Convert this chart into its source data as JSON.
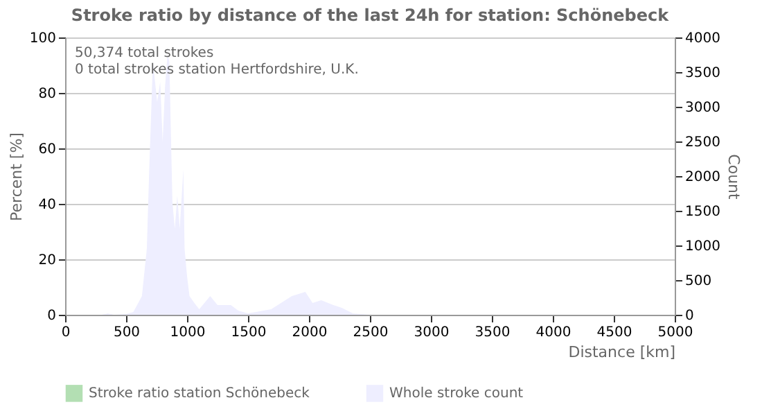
{
  "chart_data": {
    "type": "area",
    "title": "Stroke ratio by distance of the last 24h for station: Schönebeck",
    "xlabel": "Distance    [km]",
    "ylabel": "Percent    [%]",
    "y2label": "Count",
    "annotations": [
      "50,374 total strokes",
      "0 total strokes station Hertfordshire, U.K."
    ],
    "xlim": [
      0,
      5000
    ],
    "xticks": [
      0,
      500,
      1000,
      1500,
      2000,
      2500,
      3000,
      3500,
      4000,
      4500,
      5000
    ],
    "ylim": [
      0,
      100
    ],
    "yticks": [
      0,
      20,
      40,
      60,
      80,
      100
    ],
    "y2lim": [
      0,
      4000
    ],
    "y2ticks": [
      0,
      500,
      1000,
      1500,
      2000,
      2500,
      3000,
      3500,
      4000
    ],
    "grid": "y",
    "legend": "bottom",
    "series": [
      {
        "name": "Stroke ratio station Schönebeck",
        "color": "#b3dfb3",
        "axis": "y"
      },
      {
        "name": "Whole stroke count",
        "color": "#eeeeff",
        "axis": "y2",
        "x": [
          0,
          300,
          350,
          400,
          500,
          560,
          630,
          670,
          690,
          720,
          755,
          780,
          800,
          820,
          840,
          855,
          880,
          900,
          920,
          940,
          970,
          980,
          1000,
          1020,
          1060,
          1100,
          1190,
          1250,
          1360,
          1420,
          1500,
          1690,
          1860,
          1970,
          2030,
          2100,
          2200,
          2270,
          2360,
          2500,
          5000
        ],
        "values": [
          0,
          0,
          20,
          0,
          10,
          40,
          270,
          950,
          2100,
          3650,
          3070,
          3360,
          2490,
          3300,
          3750,
          3650,
          1620,
          1240,
          1720,
          1240,
          2100,
          950,
          560,
          270,
          170,
          80,
          270,
          140,
          140,
          60,
          20,
          80,
          270,
          330,
          170,
          210,
          140,
          100,
          20,
          0,
          0
        ]
      }
    ]
  }
}
